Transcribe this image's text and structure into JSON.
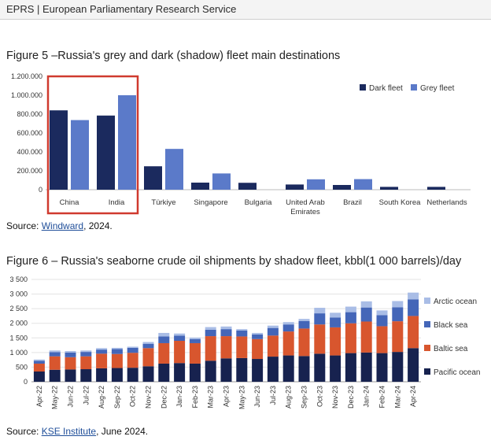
{
  "header": {
    "text": "EPRS | European Parliamentary Research Service"
  },
  "figure5": {
    "title": "Figure 5 –Russia's grey and dark (shadow) fleet main destinations",
    "source_prefix": "Source: ",
    "source_link": "Windward",
    "source_suffix": ", 2024."
  },
  "figure6": {
    "title": "Figure 6 – Russia's seaborne crude oil shipments by shadow fleet, kbbl(1 000 barrels)/day",
    "source_prefix": "Source: ",
    "source_link": "KSE Institute",
    "source_suffix": ", June 2024."
  },
  "colors": {
    "dark": "#1b2a5e",
    "grey": "#5b7ac9",
    "highlight": "#d03a2f",
    "pacific": "#17224f",
    "baltic": "#d8562e",
    "black": "#4466b8",
    "arctic": "#a9bde6"
  },
  "chart_data": [
    {
      "type": "bar",
      "categories": [
        "China",
        "India",
        "Türkiye",
        "Singapore",
        "Bulgaria",
        "United Arab Emirates",
        "Brazil",
        "South Korea",
        "Netherlands"
      ],
      "category_lines": [
        [
          "China"
        ],
        [
          "India"
        ],
        [
          "Türkiye"
        ],
        [
          "Singapore"
        ],
        [
          "Bulgaria"
        ],
        [
          "United Arab",
          "Emirates"
        ],
        [
          "Brazil"
        ],
        [
          "South Korea"
        ],
        [
          "Netherlands"
        ]
      ],
      "series": [
        {
          "name": "Dark fleet",
          "values": [
            840000,
            785000,
            248000,
            75000,
            73000,
            55000,
            50000,
            30000,
            30000
          ]
        },
        {
          "name": "Grey fleet",
          "values": [
            737000,
            1000000,
            432000,
            172000,
            0,
            110000,
            112000,
            0,
            0
          ]
        }
      ],
      "yticks": [
        "0",
        "200.000",
        "400.000",
        "600.000",
        "800.000",
        "1.000.000",
        "1.200.000"
      ],
      "ylim": [
        0,
        1200000
      ],
      "legend_position": "top-right",
      "highlight": [
        "China",
        "India"
      ]
    },
    {
      "type": "bar",
      "stacked": true,
      "categories": [
        "Apr-22",
        "May-22",
        "Jun-22",
        "Jul-22",
        "Aug-22",
        "Sep-22",
        "Oct-22",
        "Nov-22",
        "Dec-22",
        "Jan-23",
        "Feb-23",
        "Mar-23",
        "Apr-23",
        "May-23",
        "Jun-23",
        "Jul-23",
        "Aug-23",
        "Sep-23",
        "Oct-23",
        "Nov-23",
        "Dec-23",
        "Jan-24",
        "Feb-24",
        "Mar-24",
        "Apr-24"
      ],
      "series": [
        {
          "name": "Pacific ocean",
          "values": [
            350,
            410,
            420,
            430,
            460,
            470,
            480,
            530,
            620,
            640,
            620,
            720,
            800,
            810,
            780,
            860,
            900,
            880,
            960,
            900,
            980,
            1000,
            980,
            1020,
            1150
          ]
        },
        {
          "name": "Baltic sea",
          "values": [
            270,
            460,
            420,
            440,
            500,
            480,
            510,
            620,
            700,
            760,
            700,
            840,
            760,
            740,
            680,
            720,
            820,
            940,
            1000,
            960,
            1020,
            1060,
            920,
            1050,
            1100
          ]
        },
        {
          "name": "Black sea",
          "values": [
            100,
            140,
            160,
            150,
            140,
            170,
            170,
            150,
            230,
            180,
            140,
            220,
            240,
            200,
            160,
            260,
            240,
            260,
            380,
            340,
            380,
            480,
            380,
            480,
            570
          ]
        },
        {
          "name": "Arctic ocean",
          "values": [
            40,
            60,
            50,
            50,
            50,
            40,
            40,
            60,
            120,
            70,
            50,
            90,
            90,
            50,
            50,
            80,
            80,
            70,
            190,
            160,
            190,
            210,
            160,
            210,
            230
          ]
        }
      ],
      "yticks": [
        "0",
        "500",
        "1 000",
        "1 500",
        "2 000",
        "2 500",
        "3 000",
        "3 500"
      ],
      "ylim": [
        0,
        3500
      ],
      "legend_position": "right"
    }
  ]
}
